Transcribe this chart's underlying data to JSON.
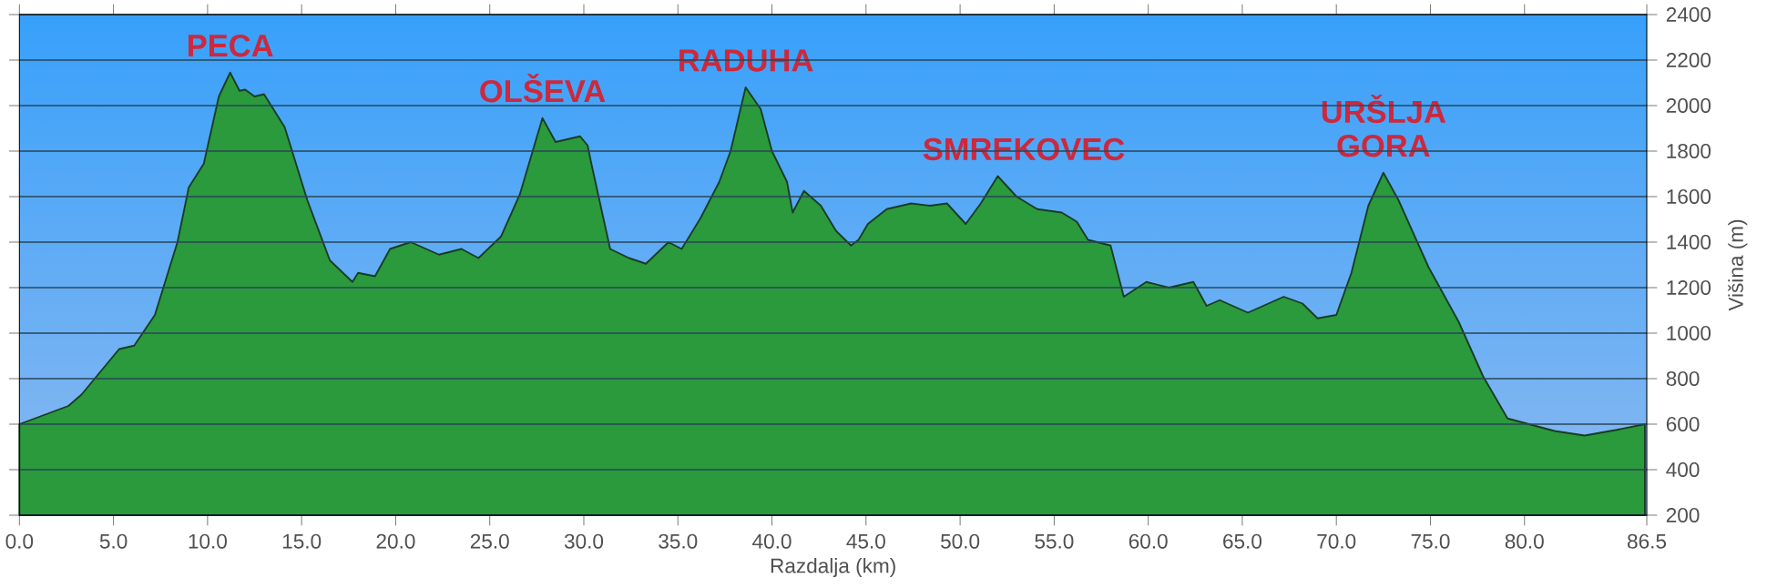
{
  "chart_data": {
    "type": "area",
    "xlabel": "Razdalja   (km)",
    "ylabel": "Višina (m)",
    "x": [
      0,
      2.6,
      3.3,
      5.3,
      6.1,
      7.2,
      8.4,
      9.0,
      9.8,
      10.6,
      11.2,
      11.7,
      12.0,
      12.5,
      13.0,
      14.1,
      15.3,
      16.5,
      17.7,
      18.0,
      18.9,
      19.7,
      20.8,
      22.3,
      23.5,
      24.4,
      25.6,
      26.6,
      27.8,
      28.5,
      29.8,
      30.2,
      30.4,
      31.4,
      32.4,
      33.3,
      34.5,
      35.2,
      36.2,
      37.2,
      37.8,
      38.6,
      39.4,
      40.0,
      40.8,
      41.1,
      41.7,
      42.6,
      43.4,
      44.2,
      44.6,
      45.1,
      46.1,
      47.4,
      48.4,
      49.3,
      50.3,
      51.1,
      52.0,
      53.0,
      54.1,
      55.4,
      56.2,
      56.8,
      58.0,
      58.7,
      59.9,
      61.1,
      62.4,
      63.1,
      63.8,
      65.3,
      67.2,
      68.2,
      69.0,
      70.0,
      70.8,
      71.7,
      72.5,
      73.3,
      74.9,
      76.5,
      77.8,
      79.1,
      81.6,
      83.2,
      84.9,
      86.4
    ],
    "values": [
      600,
      680,
      730,
      930,
      945,
      1080,
      1400,
      1640,
      1745,
      2040,
      2145,
      2065,
      2070,
      2040,
      2050,
      1905,
      1585,
      1320,
      1225,
      1265,
      1250,
      1370,
      1400,
      1345,
      1370,
      1330,
      1425,
      1610,
      1945,
      1840,
      1865,
      1825,
      1745,
      1370,
      1330,
      1305,
      1400,
      1370,
      1505,
      1665,
      1800,
      2080,
      1985,
      1800,
      1665,
      1530,
      1625,
      1560,
      1450,
      1385,
      1410,
      1480,
      1545,
      1570,
      1560,
      1570,
      1480,
      1570,
      1690,
      1600,
      1545,
      1530,
      1490,
      1410,
      1385,
      1160,
      1225,
      1200,
      1225,
      1120,
      1145,
      1090,
      1160,
      1130,
      1065,
      1080,
      1265,
      1560,
      1705,
      1585,
      1290,
      1050,
      810,
      625,
      570,
      550,
      575,
      600
    ],
    "color": "#2a9a3c",
    "xlim": [
      0,
      86.5
    ],
    "ylim": [
      200,
      2400
    ],
    "xticks": [
      {
        "value": 0,
        "label": "0.0"
      },
      {
        "value": 5,
        "label": "5.0"
      },
      {
        "value": 10,
        "label": "10.0"
      },
      {
        "value": 15,
        "label": "15.0"
      },
      {
        "value": 20,
        "label": "20.0"
      },
      {
        "value": 25,
        "label": "25.0"
      },
      {
        "value": 30,
        "label": "30.0"
      },
      {
        "value": 35,
        "label": "35.0"
      },
      {
        "value": 40,
        "label": "40.0"
      },
      {
        "value": 45,
        "label": "45.0"
      },
      {
        "value": 50,
        "label": "50.0"
      },
      {
        "value": 55,
        "label": "55.0"
      },
      {
        "value": 60,
        "label": "60.0"
      },
      {
        "value": 65,
        "label": "65.0"
      },
      {
        "value": 70,
        "label": "70.0"
      },
      {
        "value": 75,
        "label": "75.0"
      },
      {
        "value": 80,
        "label": "80.0"
      },
      86.5
    ],
    "yticks": [
      200,
      400,
      600,
      800,
      1000,
      1200,
      1400,
      1600,
      1800,
      2000,
      2200,
      2400
    ],
    "grid": "y",
    "annotations": [
      {
        "text": "PECA",
        "x": 11.2,
        "y": 2145
      },
      {
        "text": "OLŠEVA",
        "x": 27.8,
        "y": 1945
      },
      {
        "text": "RADUHA",
        "x": 38.6,
        "y": 2080
      },
      {
        "text": "SMREKOVEC",
        "x": 52.0,
        "y": 1690
      },
      {
        "text": "URŠLJA GORA",
        "x": 72.5,
        "y": 1705
      }
    ]
  }
}
